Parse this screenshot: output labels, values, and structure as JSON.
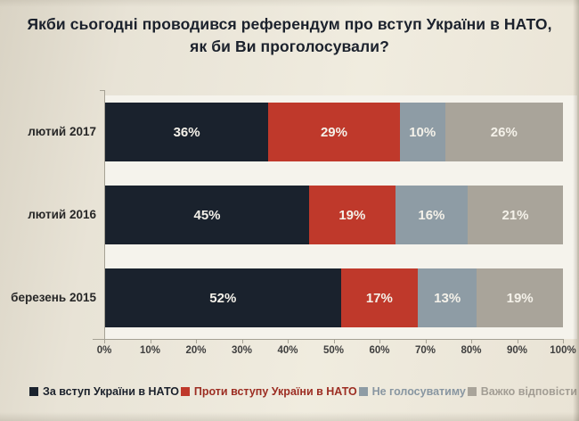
{
  "title_lines": [
    "Якби сьогодні проводився референдум про вступ України в НАТО,",
    "як би Ви проголосували?"
  ],
  "chart_data": {
    "type": "bar",
    "stacked": true,
    "orientation": "horizontal",
    "title": "Якби сьогодні проводився референдум про вступ України в НАТО, як би Ви проголосували?",
    "categories": [
      "лютий 2017",
      "лютий 2016",
      "березень 2015"
    ],
    "series": [
      {
        "name": "За вступ України в НАТО",
        "color": "#1a222d",
        "legend_text_color": "#1a202b",
        "values": [
          36,
          45,
          52
        ]
      },
      {
        "name": "Проти вступу України в НАТО",
        "color": "#bf392b",
        "legend_text_color": "#9c2d22",
        "values": [
          29,
          19,
          17
        ]
      },
      {
        "name": "Не голосуватиму",
        "color": "#8e9ca5",
        "legend_text_color": "#8896a1",
        "values": [
          10,
          16,
          13
        ]
      },
      {
        "name": "Важко відповісти",
        "color": "#a9a49a",
        "legend_text_color": "#a29d94",
        "values": [
          26,
          21,
          19
        ]
      }
    ],
    "value_suffix": "%",
    "x_ticks": [
      "0%",
      "10%",
      "20%",
      "30%",
      "40%",
      "50%",
      "60%",
      "70%",
      "80%",
      "90%",
      "100%"
    ],
    "xlim": [
      0,
      100
    ],
    "legend_position": "bottom",
    "grid": false
  }
}
